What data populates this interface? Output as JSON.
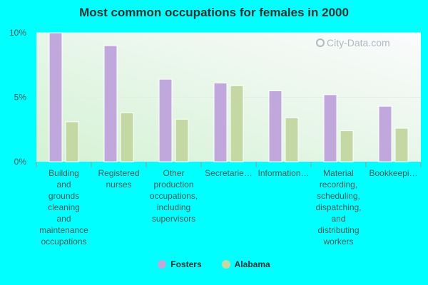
{
  "colors": {
    "fosters": "#c0a8dc",
    "alabama": "#c4d8a4"
  },
  "chart_data": {
    "type": "bar",
    "title": "Most common occupations for females in 2000",
    "categories": [
      "Building and grounds cleaning and maintenance occupations",
      "Registered nurses",
      "Other production occupations, including supervisors",
      "Secretarie…",
      "Information…",
      "Material recording, scheduling, dispatching, and distributing workers",
      "Bookkeepi…"
    ],
    "category_lines": [
      [
        "Building",
        "and",
        "grounds",
        "cleaning",
        "and",
        "maintenance",
        "occupations"
      ],
      [
        "Registered",
        "nurses"
      ],
      [
        "Other",
        "production",
        "occupations,",
        "including",
        "supervisors"
      ],
      [
        "Secretarie…"
      ],
      [
        "Information…"
      ],
      [
        "Material",
        "recording,",
        "scheduling,",
        "dispatching,",
        "and",
        "distributing",
        "workers"
      ],
      [
        "Bookkeepi…"
      ]
    ],
    "series": [
      {
        "name": "Fosters",
        "values": [
          10.0,
          9.0,
          6.4,
          6.1,
          5.5,
          5.2,
          4.3
        ]
      },
      {
        "name": "Alabama",
        "values": [
          3.1,
          3.8,
          3.3,
          5.9,
          3.4,
          2.4,
          2.6
        ]
      }
    ],
    "yticks": [
      "0%",
      "5%",
      "10%"
    ],
    "ytick_values": [
      0,
      5,
      10
    ],
    "ylim": [
      0,
      10
    ],
    "legend_position": "bottom",
    "watermark": "City-Data.com"
  }
}
